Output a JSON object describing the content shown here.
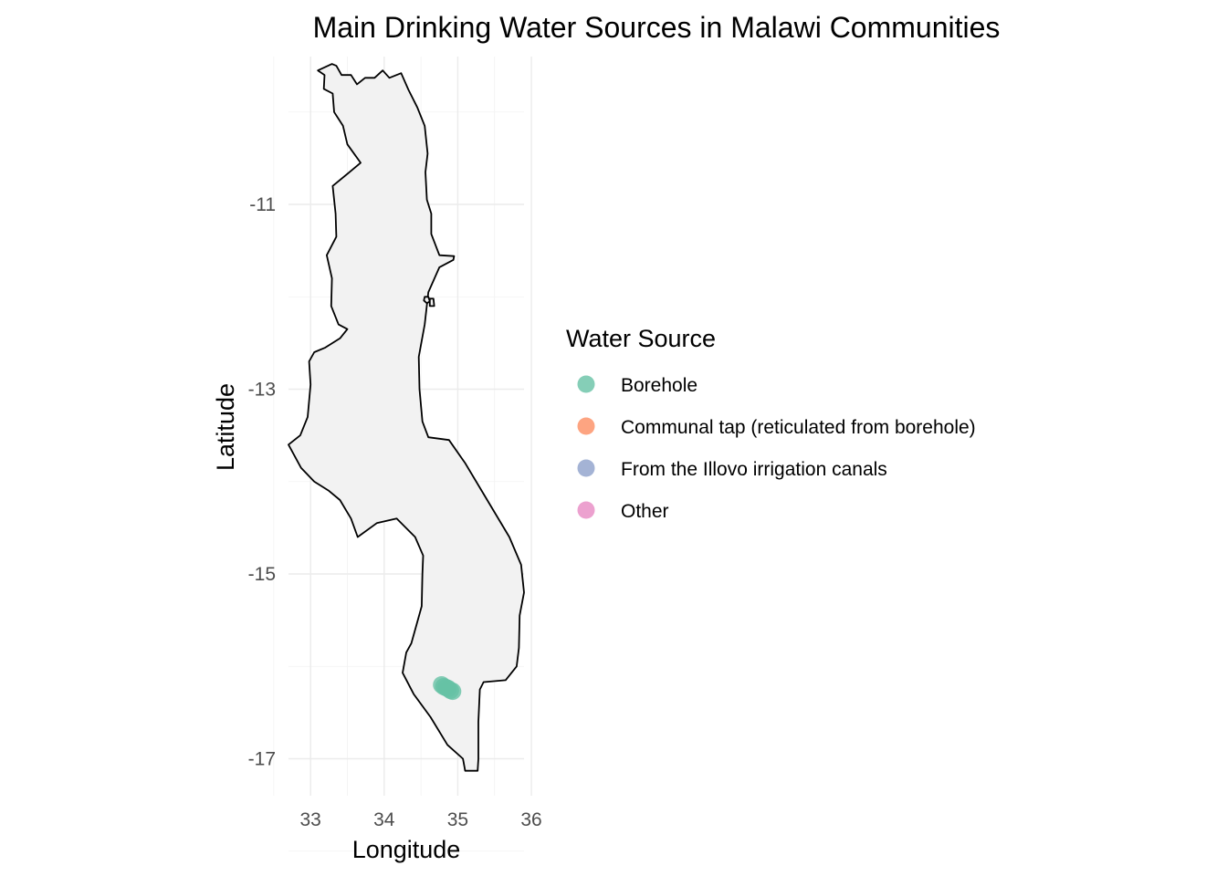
{
  "chart_data": {
    "type": "scatter",
    "title": "Main Drinking Water Sources in Malawi Communities",
    "xlabel": "Longitude",
    "ylabel": "Latitude",
    "xlim": [
      32.7,
      35.9
    ],
    "ylim": [
      -17.4,
      -9.4
    ],
    "x_ticks": [
      33,
      34,
      35,
      36
    ],
    "x_tick_labels": [
      "33",
      "34",
      "35",
      "36"
    ],
    "y_ticks": [
      -11,
      -13,
      -15,
      -17
    ],
    "y_tick_labels": [
      "-11",
      "-13",
      "-15",
      "-17"
    ],
    "grid": true,
    "legend": {
      "title": "Water Source",
      "position": "right",
      "entries": [
        {
          "name": "Borehole",
          "color": "#66c2a5"
        },
        {
          "name": "Communal tap (reticulated from borehole)",
          "color": "#fc8d62"
        },
        {
          "name": "From the Illovo irrigation canals",
          "color": "#8da0cb"
        },
        {
          "name": "Other",
          "color": "#e78ac3"
        }
      ]
    },
    "basemap": {
      "name": "Malawi",
      "fill": "#f2f2f2",
      "stroke": "#000000",
      "outline": [
        [
          33.29,
          -9.48
        ],
        [
          33.35,
          -9.5
        ],
        [
          33.42,
          -9.6
        ],
        [
          33.55,
          -9.6
        ],
        [
          33.63,
          -9.7
        ],
        [
          33.74,
          -9.63
        ],
        [
          33.87,
          -9.63
        ],
        [
          33.98,
          -9.55
        ],
        [
          34.07,
          -9.63
        ],
        [
          34.23,
          -9.58
        ],
        [
          34.33,
          -9.76
        ],
        [
          34.45,
          -9.95
        ],
        [
          34.55,
          -10.15
        ],
        [
          34.59,
          -10.45
        ],
        [
          34.56,
          -10.65
        ],
        [
          34.58,
          -10.95
        ],
        [
          34.64,
          -11.1
        ],
        [
          34.64,
          -11.32
        ],
        [
          34.75,
          -11.55
        ],
        [
          34.95,
          -11.56
        ],
        [
          34.94,
          -11.6
        ],
        [
          34.75,
          -11.68
        ],
        [
          34.6,
          -11.95
        ],
        [
          34.55,
          -12.3
        ],
        [
          34.47,
          -12.65
        ],
        [
          34.48,
          -13.0
        ],
        [
          34.52,
          -13.35
        ],
        [
          34.6,
          -13.52
        ],
        [
          34.88,
          -13.55
        ],
        [
          35.1,
          -13.8
        ],
        [
          35.4,
          -14.2
        ],
        [
          35.7,
          -14.6
        ],
        [
          35.86,
          -14.9
        ],
        [
          35.9,
          -15.2
        ],
        [
          35.84,
          -15.45
        ],
        [
          35.83,
          -15.8
        ],
        [
          35.8,
          -16.0
        ],
        [
          35.65,
          -16.15
        ],
        [
          35.35,
          -16.17
        ],
        [
          35.3,
          -16.25
        ],
        [
          35.28,
          -16.6
        ],
        [
          35.28,
          -17.0
        ],
        [
          35.27,
          -17.13
        ],
        [
          35.1,
          -17.13
        ],
        [
          35.07,
          -17.0
        ],
        [
          34.86,
          -16.85
        ],
        [
          34.63,
          -16.55
        ],
        [
          34.4,
          -16.3
        ],
        [
          34.25,
          -16.07
        ],
        [
          34.3,
          -15.85
        ],
        [
          34.37,
          -15.75
        ],
        [
          34.51,
          -15.35
        ],
        [
          34.52,
          -15.0
        ],
        [
          34.53,
          -14.8
        ],
        [
          34.42,
          -14.6
        ],
        [
          34.17,
          -14.4
        ],
        [
          33.9,
          -14.45
        ],
        [
          33.64,
          -14.6
        ],
        [
          33.55,
          -14.4
        ],
        [
          33.4,
          -14.2
        ],
        [
          33.25,
          -14.1
        ],
        [
          33.05,
          -14.0
        ],
        [
          32.87,
          -13.85
        ],
        [
          32.7,
          -13.6
        ],
        [
          32.86,
          -13.5
        ],
        [
          32.96,
          -13.3
        ],
        [
          33.0,
          -12.95
        ],
        [
          32.98,
          -12.7
        ],
        [
          33.05,
          -12.6
        ],
        [
          33.2,
          -12.55
        ],
        [
          33.4,
          -12.45
        ],
        [
          33.5,
          -12.35
        ],
        [
          33.38,
          -12.3
        ],
        [
          33.28,
          -12.1
        ],
        [
          33.29,
          -11.8
        ],
        [
          33.22,
          -11.55
        ],
        [
          33.35,
          -11.35
        ],
        [
          33.34,
          -11.1
        ],
        [
          33.3,
          -10.8
        ],
        [
          33.53,
          -10.65
        ],
        [
          33.68,
          -10.55
        ],
        [
          33.5,
          -10.35
        ],
        [
          33.44,
          -10.15
        ],
        [
          33.32,
          -10.0
        ],
        [
          33.3,
          -9.8
        ],
        [
          33.18,
          -9.75
        ],
        [
          33.19,
          -9.6
        ],
        [
          33.1,
          -9.55
        ],
        [
          33.29,
          -9.48
        ]
      ],
      "islands": [
        [
          [
            34.55,
            -12.0
          ],
          [
            34.6,
            -12.0
          ],
          [
            34.62,
            -12.05
          ],
          [
            34.58,
            -12.07
          ],
          [
            34.54,
            -12.04
          ],
          [
            34.55,
            -12.0
          ]
        ],
        [
          [
            34.62,
            -12.02
          ],
          [
            34.67,
            -12.02
          ],
          [
            34.68,
            -12.1
          ],
          [
            34.62,
            -12.1
          ],
          [
            34.62,
            -12.02
          ]
        ]
      ]
    },
    "series": [
      {
        "name": "Borehole",
        "color": "#66c2a5",
        "points": [
          {
            "x": 34.78,
            "y": -16.2
          },
          {
            "x": 34.81,
            "y": -16.22
          },
          {
            "x": 34.84,
            "y": -16.23
          },
          {
            "x": 34.87,
            "y": -16.24
          },
          {
            "x": 34.9,
            "y": -16.26
          },
          {
            "x": 34.93,
            "y": -16.27
          }
        ]
      }
    ]
  }
}
